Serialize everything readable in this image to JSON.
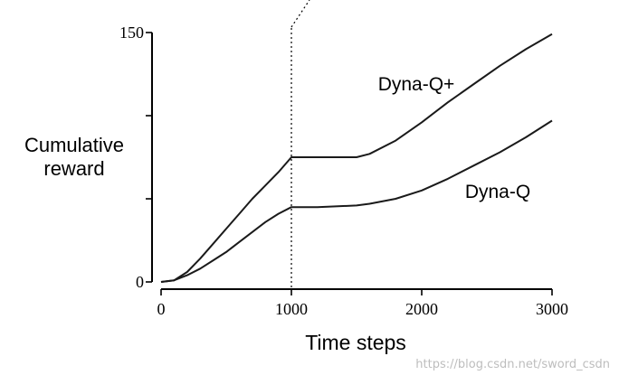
{
  "chart_data": {
    "type": "line",
    "title": "",
    "xlabel": "Time steps",
    "ylabel": "Cumulative reward",
    "ylabel_lines": [
      "Cumulative",
      "reward"
    ],
    "xlim": [
      0,
      3000
    ],
    "ylim": [
      0,
      150
    ],
    "x_ticks": [
      0,
      1000,
      2000,
      3000
    ],
    "x_tick_labels": [
      "0",
      "1000",
      "2000",
      "3000"
    ],
    "y_ticks": [
      0,
      50,
      100,
      150
    ],
    "y_tick_labels": [
      "0",
      "",
      "",
      "150"
    ],
    "grid": false,
    "legend": "inline labels",
    "series": [
      {
        "name": "Dyna-Q+",
        "x": [
          0,
          100,
          200,
          300,
          400,
          500,
          600,
          700,
          800,
          900,
          1000,
          1200,
          1500,
          1600,
          1800,
          2000,
          2200,
          2400,
          2600,
          2800,
          3000
        ],
        "y": [
          0,
          1,
          6,
          14,
          23,
          32,
          41,
          50,
          58,
          66,
          75,
          75,
          75,
          77,
          85,
          96,
          108,
          119,
          130,
          140,
          149
        ]
      },
      {
        "name": "Dyna-Q",
        "x": [
          0,
          100,
          200,
          300,
          400,
          500,
          600,
          700,
          800,
          900,
          1000,
          1200,
          1500,
          1600,
          1800,
          2000,
          2200,
          2400,
          2600,
          2800,
          3000
        ],
        "y": [
          0,
          1,
          4,
          8,
          13,
          18,
          24,
          30,
          36,
          41,
          45,
          45,
          46,
          47,
          50,
          55,
          62,
          70,
          78,
          87,
          97
        ]
      }
    ],
    "annotations": [
      {
        "type": "vertical_dotted_line",
        "x": 1000
      }
    ]
  },
  "watermark": "https://blog.csdn.net/sword_csdn"
}
